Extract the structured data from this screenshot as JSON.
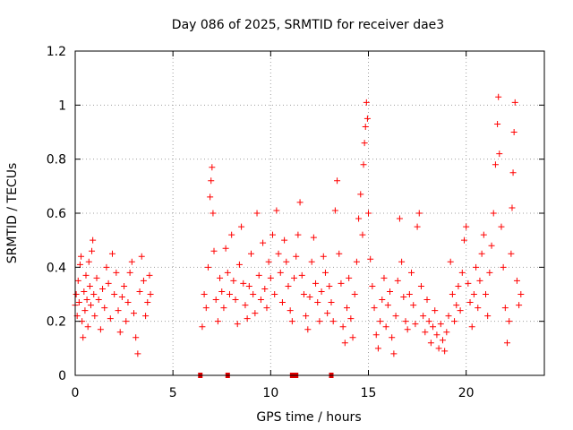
{
  "chart_data": {
    "type": "scatter",
    "title": "Day 086 of 2025, SRMTID for receiver dae3",
    "xlabel": "GPS time / hours",
    "ylabel": "SRMTID / TECUs",
    "xlim": [
      0,
      24
    ],
    "ylim": [
      0,
      1.2
    ],
    "xticks": [
      0,
      5,
      10,
      15,
      20
    ],
    "yticks": [
      0,
      0.2,
      0.4,
      0.6,
      0.8,
      1,
      1.2
    ],
    "xtick_labels": [
      "0",
      "5",
      "10",
      "15",
      "20"
    ],
    "ytick_labels": [
      "0",
      "0.2",
      "0.4",
      "0.6",
      "0.8",
      "1",
      "1.2"
    ],
    "grid": true,
    "marker": "+",
    "color": "#ff0000",
    "zero_markers_x": [
      6.4,
      7.8,
      11.1,
      11.3,
      13.1
    ],
    "series": [
      {
        "name": "SRMTID",
        "points": [
          [
            0.0,
            0.26
          ],
          [
            0.05,
            0.3
          ],
          [
            0.1,
            0.22
          ],
          [
            0.15,
            0.35
          ],
          [
            0.2,
            0.27
          ],
          [
            0.25,
            0.41
          ],
          [
            0.3,
            0.44
          ],
          [
            0.35,
            0.2
          ],
          [
            0.4,
            0.14
          ],
          [
            0.45,
            0.31
          ],
          [
            0.5,
            0.24
          ],
          [
            0.55,
            0.37
          ],
          [
            0.6,
            0.28
          ],
          [
            0.65,
            0.18
          ],
          [
            0.7,
            0.42
          ],
          [
            0.75,
            0.33
          ],
          [
            0.8,
            0.26
          ],
          [
            0.85,
            0.46
          ],
          [
            0.9,
            0.5
          ],
          [
            0.95,
            0.3
          ],
          [
            1.0,
            0.22
          ],
          [
            1.1,
            0.36
          ],
          [
            1.2,
            0.28
          ],
          [
            1.3,
            0.17
          ],
          [
            1.4,
            0.32
          ],
          [
            1.5,
            0.25
          ],
          [
            1.6,
            0.4
          ],
          [
            1.7,
            0.34
          ],
          [
            1.8,
            0.21
          ],
          [
            1.9,
            0.45
          ],
          [
            2.0,
            0.3
          ],
          [
            2.1,
            0.38
          ],
          [
            2.2,
            0.24
          ],
          [
            2.3,
            0.16
          ],
          [
            2.4,
            0.29
          ],
          [
            2.5,
            0.33
          ],
          [
            2.6,
            0.2
          ],
          [
            2.7,
            0.27
          ],
          [
            2.8,
            0.38
          ],
          [
            2.9,
            0.42
          ],
          [
            3.0,
            0.23
          ],
          [
            3.1,
            0.14
          ],
          [
            3.2,
            0.08
          ],
          [
            3.3,
            0.31
          ],
          [
            3.4,
            0.44
          ],
          [
            3.5,
            0.35
          ],
          [
            3.6,
            0.22
          ],
          [
            3.7,
            0.27
          ],
          [
            3.8,
            0.37
          ],
          [
            3.85,
            0.3
          ],
          [
            6.5,
            0.18
          ],
          [
            6.6,
            0.3
          ],
          [
            6.7,
            0.25
          ],
          [
            6.8,
            0.4
          ],
          [
            6.9,
            0.66
          ],
          [
            6.95,
            0.72
          ],
          [
            7.0,
            0.77
          ],
          [
            7.05,
            0.6
          ],
          [
            7.1,
            0.46
          ],
          [
            7.2,
            0.28
          ],
          [
            7.3,
            0.2
          ],
          [
            7.4,
            0.36
          ],
          [
            7.5,
            0.31
          ],
          [
            7.6,
            0.25
          ],
          [
            7.7,
            0.47
          ],
          [
            7.8,
            0.38
          ],
          [
            7.9,
            0.3
          ],
          [
            8.0,
            0.52
          ],
          [
            8.1,
            0.35
          ],
          [
            8.2,
            0.28
          ],
          [
            8.3,
            0.19
          ],
          [
            8.4,
            0.41
          ],
          [
            8.5,
            0.55
          ],
          [
            8.6,
            0.34
          ],
          [
            8.7,
            0.26
          ],
          [
            8.8,
            0.21
          ],
          [
            8.9,
            0.33
          ],
          [
            9.0,
            0.45
          ],
          [
            9.1,
            0.3
          ],
          [
            9.2,
            0.23
          ],
          [
            9.3,
            0.6
          ],
          [
            9.4,
            0.37
          ],
          [
            9.5,
            0.28
          ],
          [
            9.6,
            0.49
          ],
          [
            9.7,
            0.32
          ],
          [
            9.8,
            0.25
          ],
          [
            9.9,
            0.42
          ],
          [
            10.0,
            0.36
          ],
          [
            10.1,
            0.52
          ],
          [
            10.2,
            0.3
          ],
          [
            10.3,
            0.61
          ],
          [
            10.4,
            0.45
          ],
          [
            10.5,
            0.38
          ],
          [
            10.6,
            0.27
          ],
          [
            10.7,
            0.5
          ],
          [
            10.8,
            0.42
          ],
          [
            10.9,
            0.33
          ],
          [
            11.0,
            0.24
          ],
          [
            11.1,
            0.2
          ],
          [
            11.2,
            0.36
          ],
          [
            11.3,
            0.44
          ],
          [
            11.4,
            0.52
          ],
          [
            11.5,
            0.64
          ],
          [
            11.6,
            0.37
          ],
          [
            11.7,
            0.3
          ],
          [
            11.8,
            0.22
          ],
          [
            11.9,
            0.17
          ],
          [
            12.0,
            0.29
          ],
          [
            12.1,
            0.42
          ],
          [
            12.2,
            0.51
          ],
          [
            12.3,
            0.34
          ],
          [
            12.4,
            0.27
          ],
          [
            12.5,
            0.2
          ],
          [
            12.6,
            0.31
          ],
          [
            12.7,
            0.44
          ],
          [
            12.8,
            0.38
          ],
          [
            12.9,
            0.23
          ],
          [
            13.0,
            0.33
          ],
          [
            13.1,
            0.27
          ],
          [
            13.2,
            0.2
          ],
          [
            13.3,
            0.61
          ],
          [
            13.4,
            0.72
          ],
          [
            13.5,
            0.45
          ],
          [
            13.6,
            0.34
          ],
          [
            13.7,
            0.18
          ],
          [
            13.8,
            0.12
          ],
          [
            13.9,
            0.25
          ],
          [
            14.0,
            0.36
          ],
          [
            14.1,
            0.21
          ],
          [
            14.2,
            0.14
          ],
          [
            14.3,
            0.3
          ],
          [
            14.4,
            0.42
          ],
          [
            14.5,
            0.58
          ],
          [
            14.6,
            0.67
          ],
          [
            14.7,
            0.52
          ],
          [
            14.75,
            0.78
          ],
          [
            14.8,
            0.86
          ],
          [
            14.85,
            0.92
          ],
          [
            14.9,
            1.01
          ],
          [
            14.95,
            0.95
          ],
          [
            15.0,
            0.6
          ],
          [
            15.1,
            0.43
          ],
          [
            15.2,
            0.33
          ],
          [
            15.3,
            0.25
          ],
          [
            15.4,
            0.15
          ],
          [
            15.5,
            0.1
          ],
          [
            15.6,
            0.2
          ],
          [
            15.7,
            0.28
          ],
          [
            15.8,
            0.36
          ],
          [
            15.9,
            0.18
          ],
          [
            16.0,
            0.26
          ],
          [
            16.1,
            0.31
          ],
          [
            16.2,
            0.14
          ],
          [
            16.3,
            0.08
          ],
          [
            16.4,
            0.22
          ],
          [
            16.5,
            0.35
          ],
          [
            16.6,
            0.58
          ],
          [
            16.7,
            0.42
          ],
          [
            16.8,
            0.29
          ],
          [
            16.9,
            0.2
          ],
          [
            17.0,
            0.17
          ],
          [
            17.1,
            0.3
          ],
          [
            17.2,
            0.38
          ],
          [
            17.3,
            0.26
          ],
          [
            17.4,
            0.19
          ],
          [
            17.5,
            0.55
          ],
          [
            17.6,
            0.6
          ],
          [
            17.7,
            0.33
          ],
          [
            17.8,
            0.22
          ],
          [
            17.9,
            0.16
          ],
          [
            18.0,
            0.28
          ],
          [
            18.1,
            0.2
          ],
          [
            18.2,
            0.12
          ],
          [
            18.3,
            0.18
          ],
          [
            18.4,
            0.24
          ],
          [
            18.5,
            0.15
          ],
          [
            18.6,
            0.1
          ],
          [
            18.7,
            0.19
          ],
          [
            18.8,
            0.13
          ],
          [
            18.9,
            0.09
          ],
          [
            19.0,
            0.16
          ],
          [
            19.1,
            0.22
          ],
          [
            19.2,
            0.42
          ],
          [
            19.3,
            0.3
          ],
          [
            19.4,
            0.2
          ],
          [
            19.5,
            0.26
          ],
          [
            19.6,
            0.33
          ],
          [
            19.7,
            0.24
          ],
          [
            19.8,
            0.38
          ],
          [
            19.9,
            0.5
          ],
          [
            20.0,
            0.55
          ],
          [
            20.1,
            0.34
          ],
          [
            20.2,
            0.27
          ],
          [
            20.3,
            0.18
          ],
          [
            20.4,
            0.3
          ],
          [
            20.5,
            0.4
          ],
          [
            20.6,
            0.25
          ],
          [
            20.7,
            0.35
          ],
          [
            20.8,
            0.45
          ],
          [
            20.9,
            0.52
          ],
          [
            21.0,
            0.3
          ],
          [
            21.1,
            0.22
          ],
          [
            21.2,
            0.38
          ],
          [
            21.3,
            0.48
          ],
          [
            21.4,
            0.6
          ],
          [
            21.5,
            0.78
          ],
          [
            21.6,
            0.93
          ],
          [
            21.65,
            1.03
          ],
          [
            21.7,
            0.82
          ],
          [
            21.8,
            0.55
          ],
          [
            21.9,
            0.4
          ],
          [
            22.0,
            0.25
          ],
          [
            22.1,
            0.12
          ],
          [
            22.2,
            0.2
          ],
          [
            22.3,
            0.45
          ],
          [
            22.35,
            0.62
          ],
          [
            22.4,
            0.75
          ],
          [
            22.45,
            0.9
          ],
          [
            22.5,
            1.01
          ],
          [
            22.6,
            0.35
          ],
          [
            22.7,
            0.26
          ],
          [
            22.8,
            0.3
          ]
        ]
      }
    ]
  }
}
